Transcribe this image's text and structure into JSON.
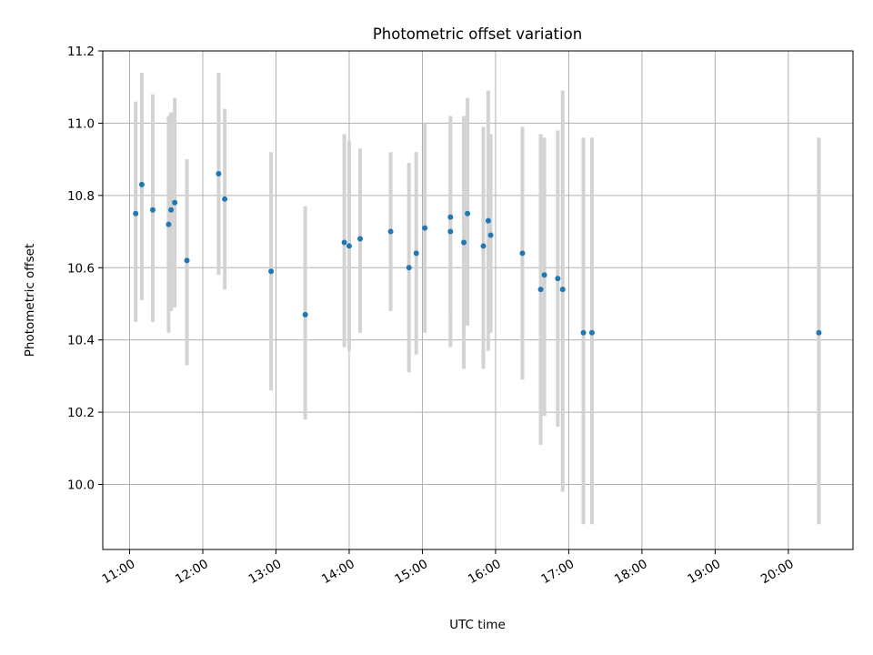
{
  "chart_data": {
    "type": "scatter",
    "title": "Photometric offset variation",
    "xlabel": "UTC time",
    "ylabel": "Photometric offset",
    "x_tick_labels": [
      "11:00",
      "12:00",
      "13:00",
      "14:00",
      "15:00",
      "16:00",
      "17:00",
      "18:00",
      "19:00",
      "20:00"
    ],
    "y_tick_labels": [
      "10.0",
      "10.2",
      "10.4",
      "10.6",
      "10.8",
      "11.0",
      "11.2"
    ],
    "xlim": [
      "10:38",
      "20:53"
    ],
    "ylim": [
      9.82,
      11.2
    ],
    "grid": true,
    "point_color": "#1f77b4",
    "errorbar_color": "#d3d3d3",
    "points": [
      {
        "x": "11:05",
        "y": 10.75,
        "ylow": 10.45,
        "yhigh": 11.06
      },
      {
        "x": "11:10",
        "y": 10.83,
        "ylow": 10.51,
        "yhigh": 11.14
      },
      {
        "x": "11:19",
        "y": 10.76,
        "ylow": 10.45,
        "yhigh": 11.08
      },
      {
        "x": "11:32",
        "y": 10.72,
        "ylow": 10.42,
        "yhigh": 11.02
      },
      {
        "x": "11:34",
        "y": 10.76,
        "ylow": 10.48,
        "yhigh": 11.03
      },
      {
        "x": "11:37",
        "y": 10.78,
        "ylow": 10.49,
        "yhigh": 11.07
      },
      {
        "x": "11:47",
        "y": 10.62,
        "ylow": 10.33,
        "yhigh": 10.9
      },
      {
        "x": "12:13",
        "y": 10.86,
        "ylow": 10.58,
        "yhigh": 11.14
      },
      {
        "x": "12:18",
        "y": 10.79,
        "ylow": 10.54,
        "yhigh": 11.04
      },
      {
        "x": "12:56",
        "y": 10.59,
        "ylow": 10.26,
        "yhigh": 10.92
      },
      {
        "x": "13:24",
        "y": 10.47,
        "ylow": 10.18,
        "yhigh": 10.77
      },
      {
        "x": "13:56",
        "y": 10.67,
        "ylow": 10.38,
        "yhigh": 10.97
      },
      {
        "x": "14:00",
        "y": 10.66,
        "ylow": 10.37,
        "yhigh": 10.95
      },
      {
        "x": "14:09",
        "y": 10.68,
        "ylow": 10.42,
        "yhigh": 10.93
      },
      {
        "x": "14:34",
        "y": 10.7,
        "ylow": 10.48,
        "yhigh": 10.92
      },
      {
        "x": "14:49",
        "y": 10.6,
        "ylow": 10.31,
        "yhigh": 10.89
      },
      {
        "x": "14:55",
        "y": 10.64,
        "ylow": 10.36,
        "yhigh": 10.92
      },
      {
        "x": "15:02",
        "y": 10.71,
        "ylow": 10.42,
        "yhigh": 11.0
      },
      {
        "x": "15:23",
        "y": 10.74,
        "ylow": 10.47,
        "yhigh": 11.02
      },
      {
        "x": "15:23",
        "y": 10.7,
        "ylow": 10.38,
        "yhigh": 11.01
      },
      {
        "x": "15:34",
        "y": 10.67,
        "ylow": 10.32,
        "yhigh": 11.02
      },
      {
        "x": "15:37",
        "y": 10.75,
        "ylow": 10.44,
        "yhigh": 11.07
      },
      {
        "x": "15:50",
        "y": 10.66,
        "ylow": 10.32,
        "yhigh": 10.99
      },
      {
        "x": "15:54",
        "y": 10.73,
        "ylow": 10.37,
        "yhigh": 11.09
      },
      {
        "x": "15:56",
        "y": 10.69,
        "ylow": 10.42,
        "yhigh": 10.97
      },
      {
        "x": "16:22",
        "y": 10.64,
        "ylow": 10.29,
        "yhigh": 10.99
      },
      {
        "x": "16:37",
        "y": 10.54,
        "ylow": 10.11,
        "yhigh": 10.97
      },
      {
        "x": "16:40",
        "y": 10.58,
        "ylow": 10.19,
        "yhigh": 10.96
      },
      {
        "x": "16:51",
        "y": 10.57,
        "ylow": 10.16,
        "yhigh": 10.98
      },
      {
        "x": "16:55",
        "y": 10.54,
        "ylow": 9.98,
        "yhigh": 11.09
      },
      {
        "x": "17:12",
        "y": 10.42,
        "ylow": 9.89,
        "yhigh": 10.96
      },
      {
        "x": "17:19",
        "y": 10.42,
        "ylow": 9.89,
        "yhigh": 10.96
      },
      {
        "x": "20:25",
        "y": 10.42,
        "ylow": 9.89,
        "yhigh": 10.96
      }
    ]
  }
}
